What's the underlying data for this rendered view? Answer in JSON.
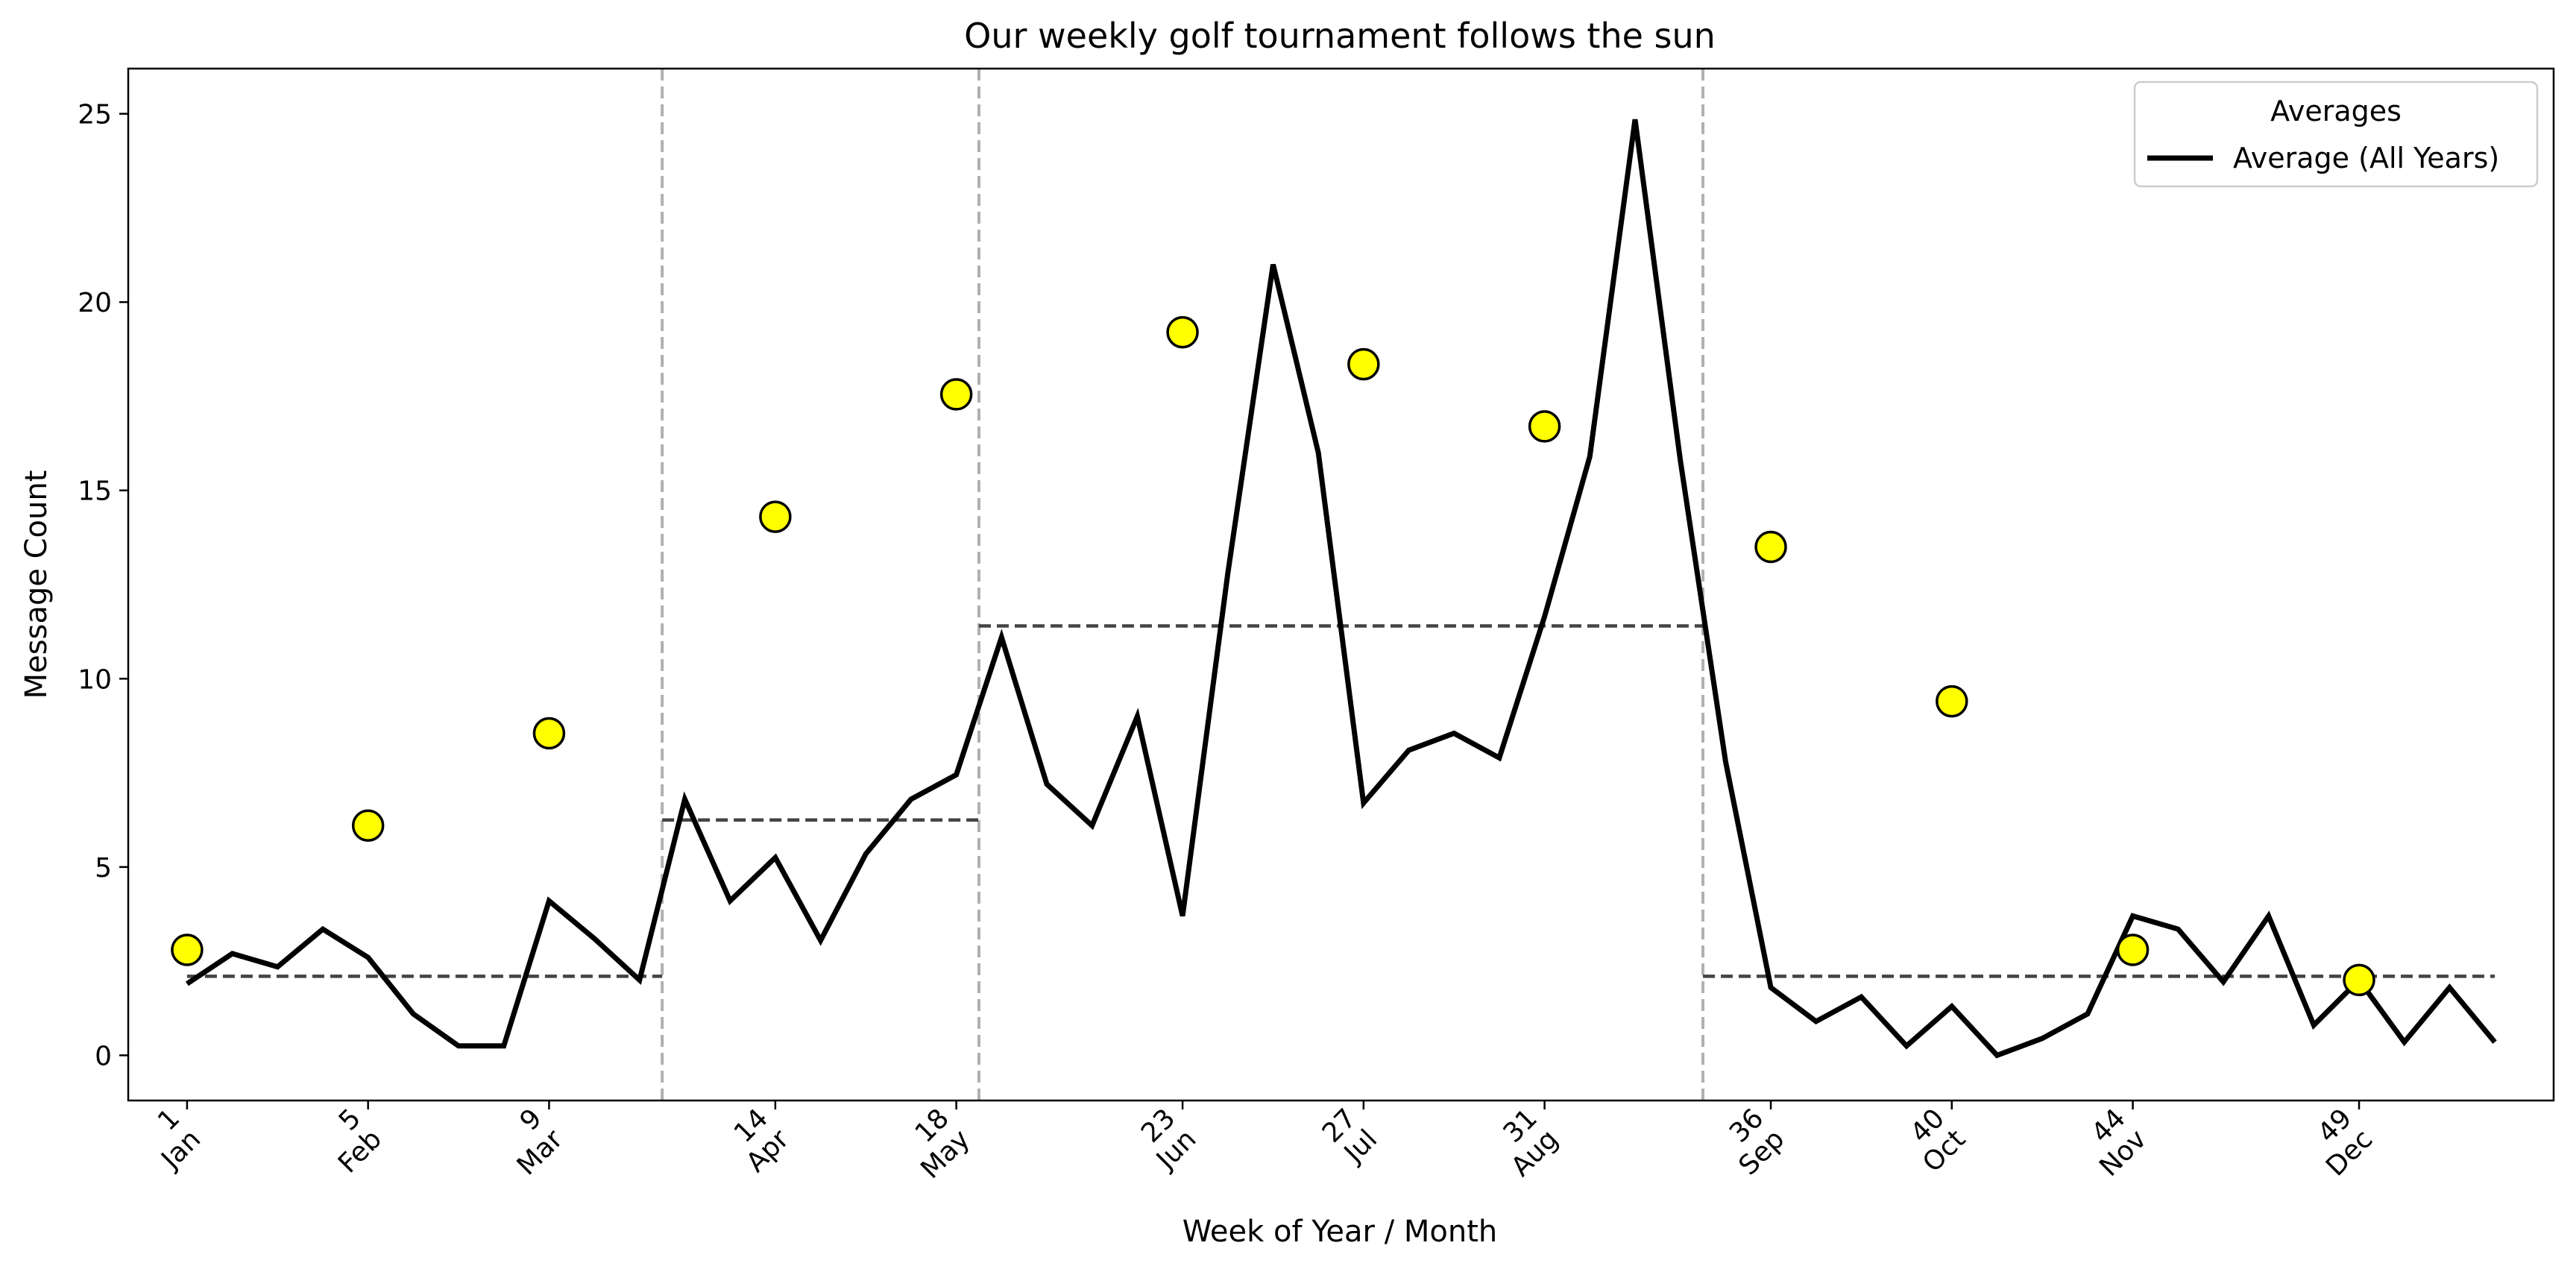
{
  "chart_data": {
    "type": "line",
    "title": "Our weekly golf tournament follows the sun",
    "xlabel": "Week of Year / Month",
    "ylabel": "Message Count",
    "xlim": [
      -0.3,
      53.3
    ],
    "ylim": [
      -1.2,
      26.2
    ],
    "yticks": [
      0,
      5,
      10,
      15,
      20,
      25
    ],
    "xticks": [
      {
        "week": 1,
        "label_week": "1",
        "label_month": "Jan"
      },
      {
        "week": 5,
        "label_week": "5",
        "label_month": "Feb"
      },
      {
        "week": 9,
        "label_week": "9",
        "label_month": "Mar"
      },
      {
        "week": 14,
        "label_week": "14",
        "label_month": "Apr"
      },
      {
        "week": 18,
        "label_week": "18",
        "label_month": "May"
      },
      {
        "week": 23,
        "label_week": "23",
        "label_month": "Jun"
      },
      {
        "week": 27,
        "label_week": "27",
        "label_month": "Jul"
      },
      {
        "week": 31,
        "label_week": "31",
        "label_month": "Aug"
      },
      {
        "week": 36,
        "label_week": "36",
        "label_month": "Sep"
      },
      {
        "week": 40,
        "label_week": "40",
        "label_month": "Oct"
      },
      {
        "week": 44,
        "label_week": "44",
        "label_month": "Nov"
      },
      {
        "week": 49,
        "label_week": "49",
        "label_month": "Dec"
      }
    ],
    "grid": false,
    "legend": {
      "position": "top-right",
      "title": "Averages",
      "entries": [
        {
          "label": "Average (All Years)",
          "color": "#000000"
        }
      ]
    },
    "series": [
      {
        "name": "Average (All Years)",
        "color": "#000000",
        "x": [
          1,
          2,
          3,
          4,
          5,
          6,
          7,
          8,
          9,
          10,
          11,
          12,
          13,
          14,
          15,
          16,
          17,
          18,
          19,
          20,
          21,
          22,
          23,
          24,
          25,
          26,
          27,
          28,
          29,
          30,
          31,
          32,
          33,
          34,
          35,
          36,
          37,
          38,
          39,
          40,
          41,
          42,
          43,
          44,
          45,
          46,
          47,
          48,
          49,
          50,
          51,
          52
        ],
        "y": [
          1.9,
          2.7,
          2.35,
          3.35,
          2.6,
          1.1,
          0.25,
          0.25,
          4.1,
          3.1,
          2.0,
          6.8,
          4.1,
          5.25,
          3.05,
          5.35,
          6.8,
          7.45,
          11.1,
          7.2,
          6.1,
          9.0,
          3.7,
          12.8,
          21.0,
          16.0,
          6.7,
          8.1,
          8.55,
          7.9,
          11.65,
          15.9,
          24.85,
          15.8,
          7.8,
          1.8,
          0.9,
          1.55,
          0.25,
          1.3,
          0.0,
          0.45,
          1.1,
          3.7,
          3.35,
          1.95,
          3.7,
          0.8,
          2.0,
          0.35,
          1.8,
          0.35
        ]
      }
    ],
    "monthly_markers": {
      "color": "#ffff00",
      "edge_color": "#000000",
      "points": [
        {
          "week": 1,
          "value": 2.8
        },
        {
          "week": 5,
          "value": 6.1
        },
        {
          "week": 9,
          "value": 8.55
        },
        {
          "week": 14,
          "value": 14.3
        },
        {
          "week": 18,
          "value": 17.55
        },
        {
          "week": 23,
          "value": 19.2
        },
        {
          "week": 27,
          "value": 18.35
        },
        {
          "week": 31,
          "value": 16.7
        },
        {
          "week": 36,
          "value": 13.5
        },
        {
          "week": 40,
          "value": 9.4
        },
        {
          "week": 44,
          "value": 2.8
        },
        {
          "week": 49,
          "value": 2.0
        }
      ]
    },
    "season_boundaries": [
      11.5,
      18.5,
      34.5
    ],
    "season_averages": [
      {
        "start": 1,
        "end": 11.5,
        "value": 2.1
      },
      {
        "start": 11.5,
        "end": 18.5,
        "value": 6.25
      },
      {
        "start": 18.5,
        "end": 34.5,
        "value": 11.4
      },
      {
        "start": 34.5,
        "end": 52,
        "value": 2.1
      }
    ]
  }
}
